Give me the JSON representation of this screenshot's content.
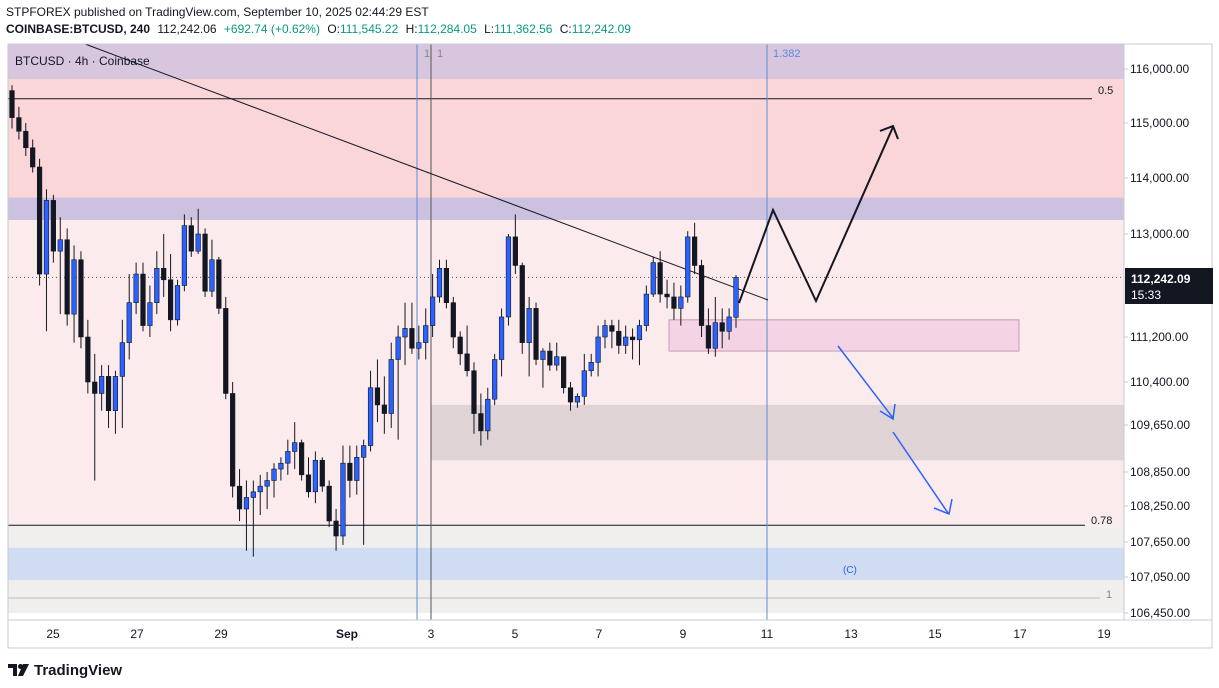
{
  "header": {
    "published": "STPFOREX published on TradingView.com, September 10, 2025 02:44:29 EST",
    "symbol": "COINBASE:BTCUSD, 240",
    "last": "112,242.06",
    "change": "+692.74 (+0.62%)",
    "o_label": "O:",
    "o": "111,545.22",
    "h_label": "H:",
    "h": "112,284.05",
    "l_label": "L:",
    "l": "111,362.56",
    "c_label": "C:",
    "c": "112,242.09"
  },
  "legend": "BTCUSD · 4h · Coinbase",
  "price_tag": {
    "price": "112,242.09",
    "countdown": "15:33"
  },
  "fib_labels": {
    "top": "0.5",
    "mid": "0.78",
    "bottom": "1",
    "time_a": "1",
    "time_b": "1",
    "time_c": "1.382"
  },
  "wave_label": "(C)",
  "footer": {
    "brand": "TradingView"
  },
  "colors": {
    "up": "#2962ff",
    "down": "#131722",
    "resistance_zone": "#c8bfe0",
    "red_zone": "#f8c8cc",
    "pink_zone": "#f3d3e4",
    "gray_zone": "#d9cfd1",
    "support_zone": "#cfdcf2",
    "vline": "#5b8dd6"
  },
  "chart_data": {
    "type": "candlestick",
    "title": "BTCUSD · 4h · Coinbase",
    "y_axis": {
      "ticks": [
        116000,
        115000,
        114000,
        113000,
        111200,
        110400,
        109650,
        108850,
        108250,
        107650,
        107050,
        106450
      ],
      "tick_labels": [
        "116,000.00",
        "115,000.00",
        "114,000.00",
        "113,000.00",
        "111,200.00",
        "110,400.00",
        "109,650.00",
        "108,850.00",
        "108,250.00",
        "107,650.00",
        "107,050.00",
        "106,450.00"
      ]
    },
    "x_axis": {
      "tick_labels": [
        "25",
        "27",
        "29",
        "Sep",
        "3",
        "5",
        "7",
        "9",
        "11",
        "13",
        "15",
        "17",
        "19"
      ]
    },
    "last_price": 112242.09,
    "candles": [
      [
        115600,
        115700,
        114900,
        115100
      ],
      [
        115100,
        115300,
        114700,
        114850
      ],
      [
        114850,
        115000,
        114400,
        114550
      ],
      [
        114550,
        114700,
        114100,
        114200
      ],
      [
        114200,
        114350,
        112100,
        112300
      ],
      [
        112300,
        113800,
        111300,
        113600
      ],
      [
        113600,
        113700,
        112500,
        112700
      ],
      [
        112700,
        113300,
        111600,
        112900
      ],
      [
        112900,
        113100,
        111400,
        111600
      ],
      [
        111600,
        112800,
        111100,
        112550
      ],
      [
        112550,
        112700,
        111000,
        111200
      ],
      [
        111200,
        111500,
        110200,
        110400
      ],
      [
        110400,
        110900,
        108700,
        110200
      ],
      [
        110200,
        110700,
        109900,
        110500
      ],
      [
        110500,
        110700,
        109600,
        109900
      ],
      [
        109900,
        110600,
        109500,
        110500
      ],
      [
        110500,
        111500,
        109600,
        111100
      ],
      [
        111100,
        112300,
        110800,
        111800
      ],
      [
        111800,
        112500,
        111600,
        112300
      ],
      [
        112300,
        112500,
        111300,
        111400
      ],
      [
        111400,
        112100,
        111200,
        111800
      ],
      [
        111800,
        112700,
        111600,
        112400
      ],
      [
        112400,
        113000,
        111900,
        112200
      ],
      [
        112200,
        112650,
        111300,
        111500
      ],
      [
        111500,
        112200,
        111400,
        112100
      ],
      [
        112100,
        113350,
        112000,
        113150
      ],
      [
        113150,
        113300,
        112600,
        112700
      ],
      [
        112700,
        113450,
        112650,
        113000
      ],
      [
        113000,
        113100,
        111900,
        112000
      ],
      [
        112000,
        112900,
        111900,
        112550
      ],
      [
        112550,
        112600,
        111600,
        111700
      ],
      [
        111700,
        111900,
        110100,
        110200
      ],
      [
        110200,
        110400,
        108400,
        108600
      ],
      [
        108600,
        108900,
        108000,
        108200
      ],
      [
        108200,
        108700,
        107500,
        108400
      ],
      [
        108400,
        108700,
        107400,
        108500
      ],
      [
        108500,
        108800,
        108100,
        108600
      ],
      [
        108600,
        108850,
        108200,
        108700
      ],
      [
        108700,
        109000,
        108400,
        108900
      ],
      [
        108900,
        109100,
        108700,
        109000
      ],
      [
        109000,
        109400,
        108800,
        109200
      ],
      [
        109200,
        109700,
        108900,
        109350
      ],
      [
        109350,
        109400,
        108700,
        108800
      ],
      [
        108800,
        109100,
        108400,
        108500
      ],
      [
        108500,
        109200,
        108300,
        109050
      ],
      [
        109050,
        109100,
        108500,
        108600
      ],
      [
        108600,
        108700,
        107900,
        108000
      ],
      [
        108000,
        108200,
        107500,
        107750
      ],
      [
        107750,
        109300,
        107600,
        109000
      ],
      [
        109000,
        109300,
        108400,
        108700
      ],
      [
        108700,
        109300,
        108450,
        109100
      ],
      [
        109100,
        109400,
        107600,
        109300
      ],
      [
        109300,
        110600,
        109200,
        110300
      ],
      [
        110300,
        110800,
        109700,
        110000
      ],
      [
        110000,
        110500,
        109500,
        109850
      ],
      [
        109850,
        111100,
        109600,
        110800
      ],
      [
        110800,
        111400,
        109400,
        111200
      ],
      [
        111200,
        111800,
        110700,
        111350
      ],
      [
        111350,
        111800,
        110900,
        111000
      ],
      [
        111000,
        111400,
        110800,
        111100
      ],
      [
        111100,
        111700,
        110800,
        111400
      ],
      [
        111400,
        112300,
        111200,
        111900
      ],
      [
        111900,
        112550,
        111800,
        112400
      ],
      [
        112400,
        112550,
        111700,
        111800
      ],
      [
        111800,
        111900,
        111000,
        111200
      ],
      [
        111200,
        111300,
        110700,
        110900
      ],
      [
        110900,
        111400,
        110500,
        110600
      ],
      [
        110600,
        110750,
        109500,
        109850
      ],
      [
        109850,
        110200,
        109300,
        109550
      ],
      [
        109550,
        110300,
        109400,
        110100
      ],
      [
        110100,
        110900,
        110000,
        110800
      ],
      [
        110800,
        111700,
        110500,
        111550
      ],
      [
        111550,
        113000,
        111400,
        112950
      ],
      [
        112950,
        113350,
        112300,
        112450
      ],
      [
        112450,
        112500,
        110900,
        111100
      ],
      [
        111100,
        111900,
        110500,
        111700
      ],
      [
        111700,
        111800,
        110700,
        110800
      ],
      [
        110800,
        111000,
        110300,
        110950
      ],
      [
        110950,
        111100,
        110600,
        110700
      ],
      [
        110700,
        111100,
        110600,
        110850
      ],
      [
        110850,
        110850,
        110200,
        110300
      ],
      [
        110300,
        110400,
        109900,
        110050
      ],
      [
        110050,
        110200,
        109950,
        110150
      ],
      [
        110150,
        110900,
        110000,
        110600
      ],
      [
        110600,
        110900,
        110500,
        110750
      ],
      [
        110750,
        111400,
        110500,
        111200
      ],
      [
        111200,
        111500,
        111000,
        111400
      ],
      [
        111400,
        111500,
        111000,
        111300
      ],
      [
        111300,
        111500,
        110900,
        111050
      ],
      [
        111050,
        111400,
        110900,
        111200
      ],
      [
        111200,
        111350,
        110800,
        111150
      ],
      [
        111150,
        111500,
        110700,
        111400
      ],
      [
        111400,
        112100,
        111300,
        111950
      ],
      [
        111950,
        112600,
        111900,
        112500
      ],
      [
        112500,
        112700,
        111800,
        111950
      ],
      [
        111950,
        112200,
        111700,
        111900
      ],
      [
        111900,
        112150,
        111500,
        111700
      ],
      [
        111700,
        112100,
        111400,
        111900
      ],
      [
        111900,
        113050,
        111800,
        112950
      ],
      [
        112950,
        113200,
        112300,
        112450
      ],
      [
        112450,
        112550,
        111200,
        111400
      ],
      [
        111400,
        111700,
        110900,
        111000
      ],
      [
        111000,
        111900,
        110850,
        111450
      ],
      [
        111450,
        111700,
        111000,
        111300
      ],
      [
        111300,
        111700,
        111150,
        111550
      ],
      [
        111545,
        112284,
        111362,
        112242
      ]
    ],
    "zones": [
      {
        "name": "resistance",
        "from": 116000,
        "to": 116250
      },
      {
        "name": "red-zone",
        "from": 113250,
        "to": 116000
      },
      {
        "name": "supply",
        "from": 113250,
        "to": 113650
      },
      {
        "name": "pink-box",
        "from": 110950,
        "to": 111500
      },
      {
        "name": "gray-box",
        "from": 109050,
        "to": 110000
      },
      {
        "name": "support",
        "from": 107000,
        "to": 107550
      }
    ],
    "fib_levels": [
      {
        "label": "0.5",
        "price": 115450
      },
      {
        "label": "0.78",
        "price": 107930
      },
      {
        "label": "1",
        "price": 106450
      }
    ]
  }
}
